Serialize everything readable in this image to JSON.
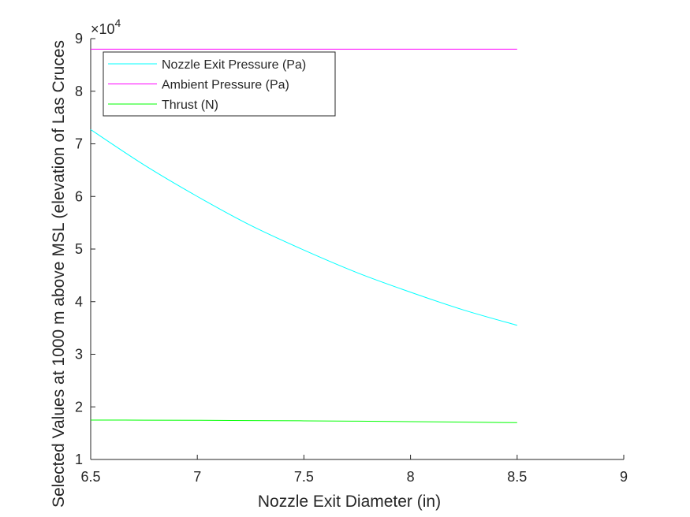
{
  "chart_data": {
    "type": "line",
    "title": "",
    "xlabel": "Nozzle Exit Diameter (in)",
    "ylabel": "Selected Values at 1000 m above MSL (elevation of Las Cruces",
    "xlim": [
      6.5,
      9
    ],
    "ylim": [
      1,
      9
    ],
    "y_scale_exponent": "×10^4",
    "y_scale_base": "×10",
    "y_scale_power": "4",
    "xticks": [
      "6.5",
      "7",
      "7.5",
      "8",
      "8.5",
      "9"
    ],
    "yticks": [
      "1",
      "2",
      "3",
      "4",
      "5",
      "6",
      "7",
      "8",
      "9"
    ],
    "grid": false,
    "legend_position": "top-left",
    "series": [
      {
        "name": "Nozzle Exit Pressure (Pa)",
        "color": "#00ffff",
        "x": [
          6.5,
          6.75,
          7.0,
          7.25,
          7.5,
          7.75,
          8.0,
          8.25,
          8.5
        ],
        "y": [
          7.27,
          6.6,
          6.0,
          5.45,
          4.98,
          4.55,
          4.18,
          3.84,
          3.55
        ]
      },
      {
        "name": "Ambient Pressure (Pa)",
        "color": "#ff00ff",
        "x": [
          6.5,
          8.5
        ],
        "y": [
          8.8,
          8.8
        ]
      },
      {
        "name": "Thrust (N)",
        "color": "#00ff00",
        "x": [
          6.5,
          6.75,
          7.0,
          7.25,
          7.5,
          7.75,
          8.0,
          8.25,
          8.5
        ],
        "y": [
          1.75,
          1.748,
          1.745,
          1.74,
          1.735,
          1.728,
          1.72,
          1.71,
          1.7
        ]
      }
    ]
  }
}
